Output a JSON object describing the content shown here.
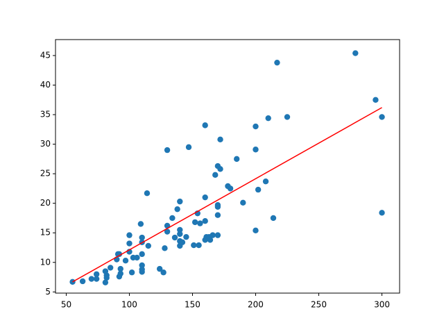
{
  "chart_data": {
    "type": "scatter",
    "series": [
      {
        "type": "scatter",
        "color": "#1f77b4",
        "x": [
          55,
          63,
          70,
          74,
          74,
          81,
          82,
          82,
          81,
          85,
          91,
          92,
          90,
          93,
          92,
          93,
          97,
          100,
          100,
          100,
          102,
          103,
          106,
          110,
          110,
          110,
          110,
          110,
          110,
          109,
          114,
          115,
          124,
          127,
          128,
          130,
          130,
          130,
          134,
          136,
          138,
          140,
          140,
          140,
          140,
          140,
          142,
          145,
          147,
          151,
          152,
          154,
          155,
          156,
          160,
          160,
          160,
          160,
          161,
          163,
          166,
          164,
          168,
          170,
          172,
          170,
          170,
          170,
          170,
          172,
          178,
          180,
          185,
          190,
          200,
          200,
          200,
          202,
          208,
          210,
          214,
          217,
          225,
          279,
          295,
          300,
          300
        ],
        "values": [
          6.7,
          6.8,
          7.2,
          7.2,
          8,
          6.6,
          7.4,
          7.8,
          8.5,
          9.1,
          11.4,
          11.4,
          10.5,
          8.9,
          7.6,
          8.1,
          10.3,
          11.8,
          13.2,
          14.6,
          8.3,
          10.8,
          10.8,
          8.4,
          8.8,
          9.5,
          11.4,
          13.4,
          14.2,
          16.5,
          21.7,
          12.8,
          8.9,
          8.3,
          12.4,
          15.2,
          16.2,
          29,
          17.5,
          14.2,
          19,
          20.3,
          12.8,
          13.6,
          14.8,
          15.5,
          13.4,
          14.3,
          29.5,
          12.9,
          16.8,
          18.3,
          12.9,
          16.6,
          17,
          21,
          33.2,
          13.8,
          14.3,
          14.3,
          14.6,
          13.8,
          24.8,
          26.3,
          25.8,
          19.7,
          19.4,
          18,
          14.6,
          30.8,
          22.9,
          22.5,
          27.5,
          20.1,
          33,
          29.1,
          15.4,
          22.3,
          23.7,
          34.4,
          17.5,
          43.8,
          34.6,
          45.4,
          37.5,
          34.6,
          18.4
        ]
      },
      {
        "type": "line",
        "color": "#ff0000",
        "x": [
          55,
          300
        ],
        "values": [
          6.7,
          36.2
        ]
      }
    ],
    "xlim": [
      41.5,
      314
    ],
    "xticks": [
      50,
      100,
      150,
      200,
      250,
      300
    ],
    "ylim": [
      4.8,
      47.7
    ],
    "yticks": [
      5,
      10,
      15,
      20,
      25,
      30,
      35,
      40,
      45
    ]
  }
}
